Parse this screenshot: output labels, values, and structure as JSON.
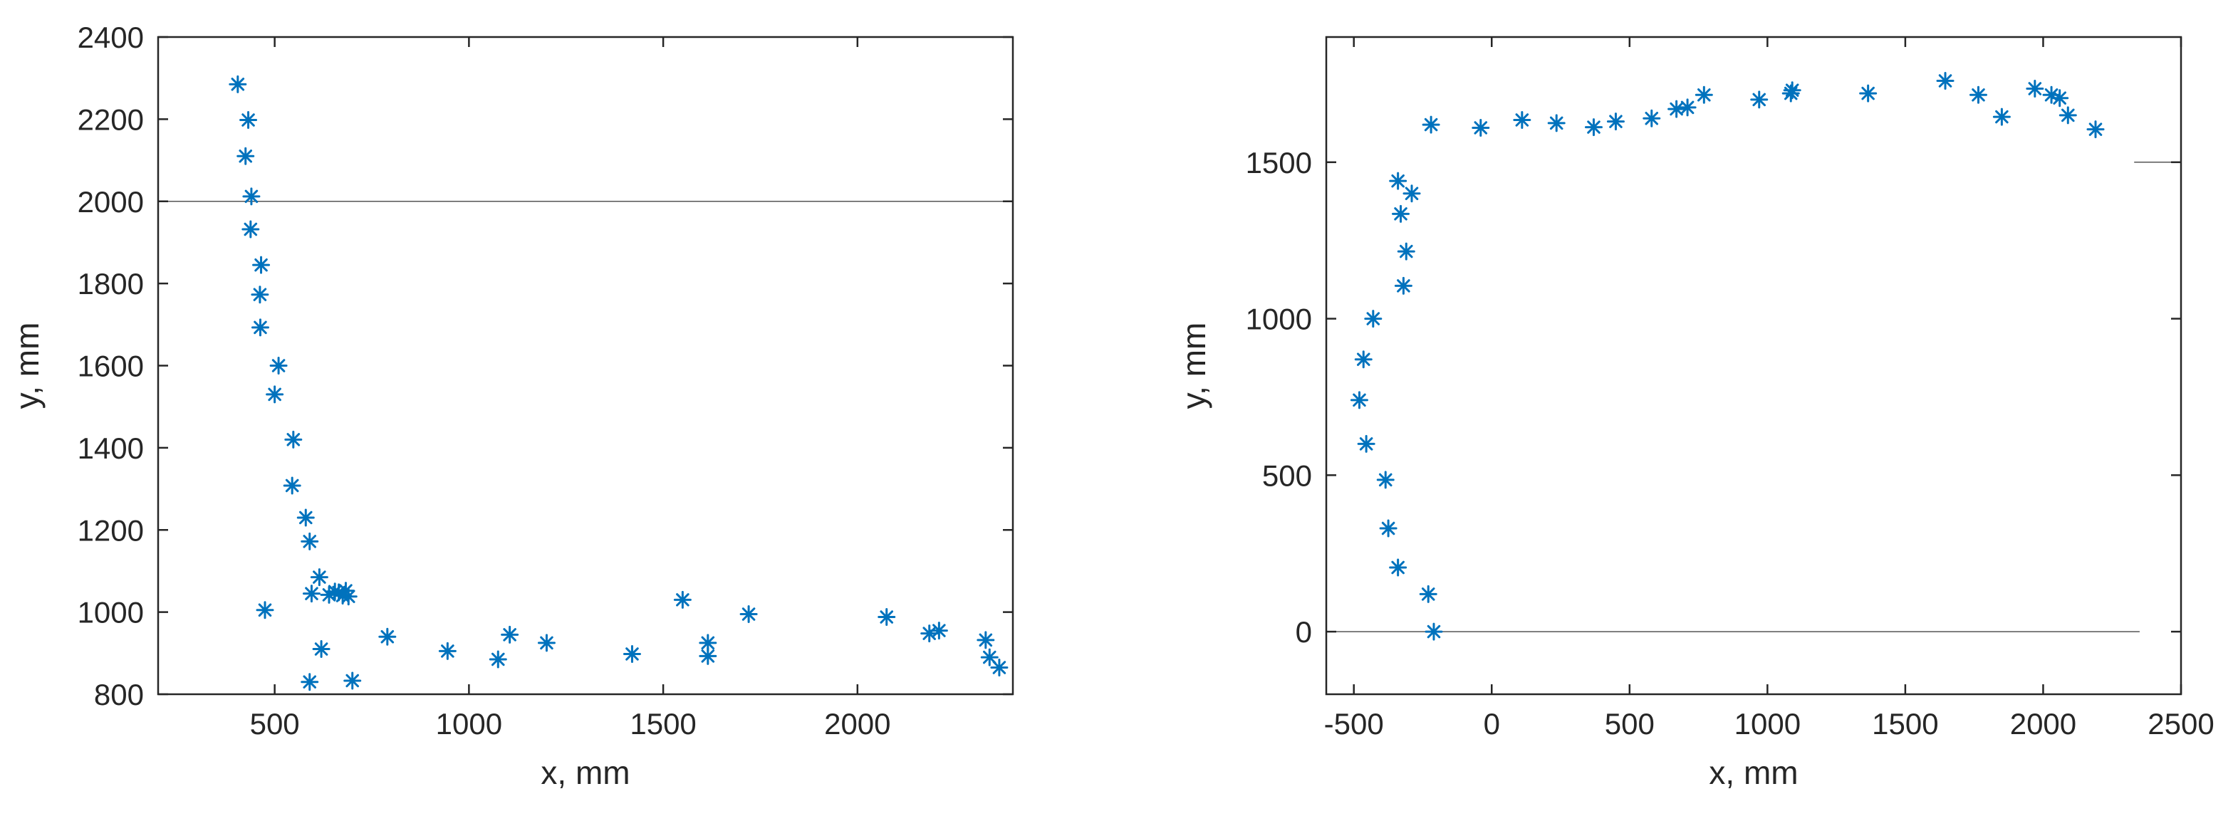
{
  "chart_data": [
    {
      "type": "scatter",
      "title": "",
      "xlabel": "x, mm",
      "ylabel": "y, mm",
      "xlim": [
        200,
        2400
      ],
      "ylim": [
        800,
        2400
      ],
      "xticks": [
        500,
        1000,
        1500,
        2000
      ],
      "yticks": [
        800,
        1000,
        1200,
        1400,
        1600,
        1800,
        2000,
        2200,
        2400
      ],
      "marker": "asterisk",
      "marker_color": "#0072BD",
      "grid": false,
      "legend": "none",
      "reference_lines": [
        {
          "orientation": "horizontal",
          "y": 2000,
          "x_range": [
            200,
            2400
          ]
        }
      ],
      "series": [
        {
          "points": [
            [
              405,
              2285
            ],
            [
              432,
              2198
            ],
            [
              425,
              2110
            ],
            [
              440,
              2012
            ],
            [
              438,
              1932
            ],
            [
              465,
              1845
            ],
            [
              462,
              1773
            ],
            [
              463,
              1693
            ],
            [
              510,
              1600
            ],
            [
              500,
              1530
            ],
            [
              548,
              1420
            ],
            [
              545,
              1308
            ],
            [
              580,
              1230
            ],
            [
              590,
              1172
            ],
            [
              595,
              1045
            ],
            [
              615,
              1085
            ],
            [
              640,
              1042
            ],
            [
              655,
              1050
            ],
            [
              665,
              1048
            ],
            [
              675,
              1040
            ],
            [
              683,
              1052
            ],
            [
              690,
              1038
            ],
            [
              475,
              1005
            ],
            [
              620,
              910
            ],
            [
              590,
              830
            ],
            [
              700,
              833
            ],
            [
              790,
              940
            ],
            [
              945,
              905
            ],
            [
              1075,
              885
            ],
            [
              1105,
              945
            ],
            [
              1200,
              925
            ],
            [
              1420,
              898
            ],
            [
              1550,
              1030
            ],
            [
              1615,
              925
            ],
            [
              1615,
              893
            ],
            [
              1720,
              995
            ],
            [
              2075,
              988
            ],
            [
              2185,
              948
            ],
            [
              2210,
              955
            ],
            [
              2330,
              932
            ],
            [
              2340,
              890
            ],
            [
              2365,
              865
            ]
          ]
        }
      ]
    },
    {
      "type": "scatter",
      "title": "",
      "xlabel": "x, mm",
      "ylabel": "y, mm",
      "xlim": [
        -600,
        2500
      ],
      "ylim": [
        -200,
        1900
      ],
      "xticks": [
        -500,
        0,
        500,
        1000,
        1500,
        2000,
        2500
      ],
      "yticks": [
        0,
        500,
        1000,
        1500
      ],
      "marker": "asterisk",
      "marker_color": "#0072BD",
      "grid": false,
      "legend": "none",
      "reference_lines": [
        {
          "orientation": "horizontal",
          "y": 0,
          "x_range": [
            -600,
            2350
          ]
        },
        {
          "orientation": "horizontal",
          "y": 1500,
          "x_range": [
            2330,
            2500
          ]
        }
      ],
      "series": [
        {
          "points": [
            [
              -210,
              0
            ],
            [
              -230,
              120
            ],
            [
              -340,
              205
            ],
            [
              -375,
              330
            ],
            [
              -385,
              485
            ],
            [
              -455,
              600
            ],
            [
              -480,
              740
            ],
            [
              -465,
              870
            ],
            [
              -430,
              1000
            ],
            [
              -320,
              1105
            ],
            [
              -310,
              1215
            ],
            [
              -330,
              1335
            ],
            [
              -290,
              1400
            ],
            [
              -340,
              1440
            ],
            [
              -220,
              1620
            ],
            [
              -40,
              1610
            ],
            [
              110,
              1635
            ],
            [
              235,
              1625
            ],
            [
              370,
              1612
            ],
            [
              450,
              1630
            ],
            [
              580,
              1640
            ],
            [
              670,
              1670
            ],
            [
              710,
              1675
            ],
            [
              770,
              1715
            ],
            [
              970,
              1700
            ],
            [
              1085,
              1720
            ],
            [
              1090,
              1730
            ],
            [
              1365,
              1720
            ],
            [
              1645,
              1760
            ],
            [
              1765,
              1715
            ],
            [
              1850,
              1645
            ],
            [
              1970,
              1735
            ],
            [
              2030,
              1715
            ],
            [
              2060,
              1705
            ],
            [
              2090,
              1650
            ],
            [
              2190,
              1605
            ]
          ]
        }
      ]
    }
  ]
}
